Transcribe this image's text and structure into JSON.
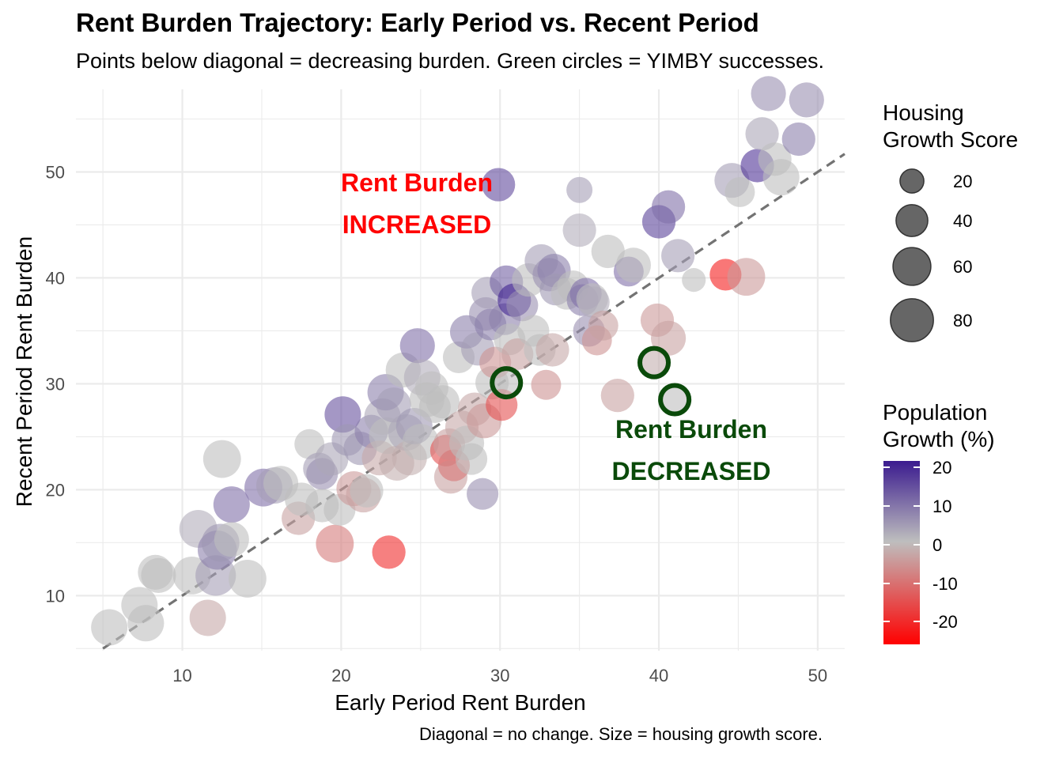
{
  "title": "Rent Burden Trajectory: Early Period vs. Recent Period",
  "subtitle": "Points below diagonal = decreasing burden. Green circles = YIMBY successes.",
  "caption": "Diagonal = no change. Size = housing growth score.",
  "annotations": {
    "increased_line1": "Rent Burden",
    "increased_line2": "INCREASED",
    "decreased_line1": "Rent Burden",
    "decreased_line2": "DECREASED",
    "increased_color": "#ff0000",
    "decreased_color": "#0a4a0a"
  },
  "legend_size": {
    "title_line1": "Housing",
    "title_line2": "Growth Score",
    "entries": [
      "20",
      "40",
      "60",
      "80"
    ]
  },
  "legend_color": {
    "title_line1": "Population",
    "title_line2": "Growth (%)",
    "ticks": [
      "20",
      "10",
      "0",
      "-10",
      "-20"
    ],
    "high": "#3b1b8f",
    "mid": "#bebebe",
    "low": "#ff0000"
  },
  "chart_data": {
    "type": "scatter",
    "xlabel": "Early Period Rent Burden",
    "ylabel": "Recent Period Rent Burden",
    "xlim": [
      3.3,
      51.7
    ],
    "ylim": [
      4.8,
      57.8
    ],
    "xticks": [
      "10",
      "20",
      "30",
      "40",
      "50"
    ],
    "yticks": [
      "10",
      "20",
      "30",
      "40",
      "50"
    ],
    "grid": true,
    "legend_position": "right",
    "reference_line": "y = x (dashed)",
    "points": [
      {
        "x": 5.4,
        "y": 7.0,
        "s": 55,
        "c": 0
      },
      {
        "x": 7.3,
        "y": 9.1,
        "s": 55,
        "c": 0
      },
      {
        "x": 7.7,
        "y": 7.4,
        "s": 55,
        "c": 0
      },
      {
        "x": 8.3,
        "y": 12.2,
        "s": 50,
        "c": 0
      },
      {
        "x": 8.5,
        "y": 11.9,
        "s": 50,
        "c": 0
      },
      {
        "x": 10.6,
        "y": 11.9,
        "s": 60,
        "c": 0
      },
      {
        "x": 11.0,
        "y": 16.3,
        "s": 60,
        "c": 2
      },
      {
        "x": 11.6,
        "y": 7.9,
        "s": 55,
        "c": -3
      },
      {
        "x": 12.1,
        "y": 11.9,
        "s": 70,
        "c": 4
      },
      {
        "x": 12.2,
        "y": 14.3,
        "s": 65,
        "c": 8
      },
      {
        "x": 12.4,
        "y": 15.0,
        "s": 60,
        "c": 5
      },
      {
        "x": 12.5,
        "y": 22.9,
        "s": 60,
        "c": 0
      },
      {
        "x": 13.1,
        "y": 18.6,
        "s": 55,
        "c": 10
      },
      {
        "x": 13.1,
        "y": 15.3,
        "s": 50,
        "c": 0
      },
      {
        "x": 14.1,
        "y": 11.6,
        "s": 60,
        "c": 0
      },
      {
        "x": 15.1,
        "y": 20.2,
        "s": 60,
        "c": 10
      },
      {
        "x": 15.8,
        "y": 20.4,
        "s": 55,
        "c": 4
      },
      {
        "x": 16.2,
        "y": 20.6,
        "s": 50,
        "c": 0
      },
      {
        "x": 17.3,
        "y": 17.3,
        "s": 45,
        "c": -4
      },
      {
        "x": 17.5,
        "y": 19.1,
        "s": 45,
        "c": 0
      },
      {
        "x": 18.0,
        "y": 24.3,
        "s": 35,
        "c": 0
      },
      {
        "x": 18.6,
        "y": 22.0,
        "s": 40,
        "c": 4
      },
      {
        "x": 18.8,
        "y": 21.5,
        "s": 40,
        "c": 6
      },
      {
        "x": 18.8,
        "y": 18.5,
        "s": 45,
        "c": 0
      },
      {
        "x": 19.4,
        "y": 22.9,
        "s": 45,
        "c": 3
      },
      {
        "x": 19.6,
        "y": 14.9,
        "s": 60,
        "c": -9
      },
      {
        "x": 19.9,
        "y": 18.1,
        "s": 40,
        "c": 0
      },
      {
        "x": 20.1,
        "y": 27.1,
        "s": 55,
        "c": 14
      },
      {
        "x": 20.4,
        "y": 24.7,
        "s": 40,
        "c": 5
      },
      {
        "x": 20.8,
        "y": 20.1,
        "s": 50,
        "c": -5
      },
      {
        "x": 21.2,
        "y": 23.9,
        "s": 45,
        "c": 5
      },
      {
        "x": 21.4,
        "y": 19.5,
        "s": 50,
        "c": -4
      },
      {
        "x": 21.6,
        "y": 19.9,
        "s": 45,
        "c": 0
      },
      {
        "x": 21.9,
        "y": 25.5,
        "s": 45,
        "c": 8
      },
      {
        "x": 22.4,
        "y": 23.0,
        "s": 50,
        "c": -3
      },
      {
        "x": 22.6,
        "y": 26.9,
        "s": 55,
        "c": 3
      },
      {
        "x": 22.8,
        "y": 29.2,
        "s": 55,
        "c": 8
      },
      {
        "x": 22.9,
        "y": 25.1,
        "s": 55,
        "c": 0
      },
      {
        "x": 23.0,
        "y": 14.1,
        "s": 45,
        "c": -20
      },
      {
        "x": 23.3,
        "y": 28.0,
        "s": 50,
        "c": 4
      },
      {
        "x": 23.5,
        "y": 22.5,
        "s": 50,
        "c": -2
      },
      {
        "x": 23.9,
        "y": 31.3,
        "s": 50,
        "c": 0
      },
      {
        "x": 24.1,
        "y": 25.4,
        "s": 55,
        "c": 3
      },
      {
        "x": 24.3,
        "y": 23.0,
        "s": 50,
        "c": -2
      },
      {
        "x": 24.6,
        "y": 26.0,
        "s": 55,
        "c": 5
      },
      {
        "x": 24.8,
        "y": 33.6,
        "s": 50,
        "c": 10
      },
      {
        "x": 25.0,
        "y": 24.5,
        "s": 55,
        "c": 0
      },
      {
        "x": 25.1,
        "y": 30.6,
        "s": 55,
        "c": 2
      },
      {
        "x": 25.4,
        "y": 28.5,
        "s": 50,
        "c": 0
      },
      {
        "x": 25.7,
        "y": 29.6,
        "s": 45,
        "c": 0
      },
      {
        "x": 25.9,
        "y": 27.8,
        "s": 40,
        "c": 0
      },
      {
        "x": 26.4,
        "y": 28.3,
        "s": 45,
        "c": 0
      },
      {
        "x": 26.6,
        "y": 23.7,
        "s": 40,
        "c": -15
      },
      {
        "x": 26.8,
        "y": 24.3,
        "s": 40,
        "c": -4
      },
      {
        "x": 26.9,
        "y": 21.2,
        "s": 45,
        "c": -4
      },
      {
        "x": 27.1,
        "y": 22.3,
        "s": 40,
        "c": -10
      },
      {
        "x": 27.4,
        "y": 32.5,
        "s": 40,
        "c": 0
      },
      {
        "x": 27.6,
        "y": 25.9,
        "s": 45,
        "c": -3
      },
      {
        "x": 27.9,
        "y": 24.4,
        "s": 50,
        "c": 0
      },
      {
        "x": 27.9,
        "y": 34.9,
        "s": 45,
        "c": 8
      },
      {
        "x": 28.2,
        "y": 22.9,
        "s": 40,
        "c": 0
      },
      {
        "x": 28.4,
        "y": 27.6,
        "s": 45,
        "c": -3
      },
      {
        "x": 28.6,
        "y": 33.3,
        "s": 45,
        "c": 4
      },
      {
        "x": 28.9,
        "y": 19.6,
        "s": 40,
        "c": 6
      },
      {
        "x": 29.0,
        "y": 26.5,
        "s": 50,
        "c": -5
      },
      {
        "x": 29.1,
        "y": 36.6,
        "s": 45,
        "c": 6
      },
      {
        "x": 29.2,
        "y": 38.6,
        "s": 40,
        "c": 4
      },
      {
        "x": 29.4,
        "y": 35.6,
        "s": 40,
        "c": 8
      },
      {
        "x": 29.5,
        "y": 30.1,
        "s": 45,
        "c": 0
      },
      {
        "x": 29.7,
        "y": 32.0,
        "s": 40,
        "c": -6
      },
      {
        "x": 29.9,
        "y": 48.8,
        "s": 45,
        "c": 15
      },
      {
        "x": 30.1,
        "y": 28.0,
        "s": 40,
        "c": -15
      },
      {
        "x": 30.3,
        "y": 36.1,
        "s": 40,
        "c": 8
      },
      {
        "x": 30.4,
        "y": 39.6,
        "s": 45,
        "c": 12
      },
      {
        "x": 30.6,
        "y": 34.2,
        "s": 40,
        "c": 0
      },
      {
        "x": 30.9,
        "y": 37.9,
        "s": 45,
        "c": 20
      },
      {
        "x": 31.1,
        "y": 32.8,
        "s": 40,
        "c": -4
      },
      {
        "x": 31.4,
        "y": 37.4,
        "s": 40,
        "c": 6
      },
      {
        "x": 31.8,
        "y": 39.8,
        "s": 45,
        "c": 0
      },
      {
        "x": 32.1,
        "y": 35.0,
        "s": 40,
        "c": 0
      },
      {
        "x": 32.5,
        "y": 33.2,
        "s": 40,
        "c": 0
      },
      {
        "x": 32.6,
        "y": 41.6,
        "s": 45,
        "c": 4
      },
      {
        "x": 32.9,
        "y": 29.9,
        "s": 35,
        "c": -6
      },
      {
        "x": 33.1,
        "y": 40.3,
        "s": 45,
        "c": 6
      },
      {
        "x": 33.3,
        "y": 33.2,
        "s": 45,
        "c": -3
      },
      {
        "x": 33.4,
        "y": 40.7,
        "s": 45,
        "c": 8
      },
      {
        "x": 33.5,
        "y": 38.9,
        "s": 40,
        "c": 5
      },
      {
        "x": 34.2,
        "y": 38.5,
        "s": 40,
        "c": 0
      },
      {
        "x": 34.6,
        "y": 39.2,
        "s": 40,
        "c": 0
      },
      {
        "x": 35.0,
        "y": 48.3,
        "s": 25,
        "c": 4
      },
      {
        "x": 35.0,
        "y": 44.5,
        "s": 45,
        "c": 2
      },
      {
        "x": 35.2,
        "y": 37.9,
        "s": 40,
        "c": 8
      },
      {
        "x": 35.4,
        "y": 38.5,
        "s": 40,
        "c": 10
      },
      {
        "x": 35.6,
        "y": 35.0,
        "s": 40,
        "c": 6
      },
      {
        "x": 35.8,
        "y": 38.0,
        "s": 40,
        "c": 0
      },
      {
        "x": 35.9,
        "y": 37.7,
        "s": 40,
        "c": 2
      },
      {
        "x": 36.1,
        "y": 34.1,
        "s": 35,
        "c": -6
      },
      {
        "x": 36.5,
        "y": 35.5,
        "s": 35,
        "c": -4
      },
      {
        "x": 36.8,
        "y": 42.5,
        "s": 45,
        "c": 0
      },
      {
        "x": 37.4,
        "y": 28.9,
        "s": 45,
        "c": -4
      },
      {
        "x": 38.1,
        "y": 40.6,
        "s": 35,
        "c": 10
      },
      {
        "x": 38.4,
        "y": 41.2,
        "s": 50,
        "c": 0
      },
      {
        "x": 39.9,
        "y": 36.0,
        "s": 45,
        "c": -5
      },
      {
        "x": 40.0,
        "y": 45.3,
        "s": 45,
        "c": 16
      },
      {
        "x": 40.6,
        "y": 34.3,
        "s": 50,
        "c": -4
      },
      {
        "x": 40.6,
        "y": 46.7,
        "s": 45,
        "c": 10
      },
      {
        "x": 41.2,
        "y": 42.1,
        "s": 45,
        "c": 4
      },
      {
        "x": 42.2,
        "y": 39.8,
        "s": 20,
        "c": 0
      },
      {
        "x": 44.2,
        "y": 40.3,
        "s": 40,
        "c": -22
      },
      {
        "x": 44.6,
        "y": 49.2,
        "s": 50,
        "c": 4
      },
      {
        "x": 45.1,
        "y": 48.1,
        "s": 35,
        "c": 0
      },
      {
        "x": 45.5,
        "y": 40.1,
        "s": 60,
        "c": -5
      },
      {
        "x": 46.2,
        "y": 50.6,
        "s": 45,
        "c": 18
      },
      {
        "x": 46.5,
        "y": 53.6,
        "s": 45,
        "c": 3
      },
      {
        "x": 46.9,
        "y": 57.4,
        "s": 50,
        "c": 6
      },
      {
        "x": 47.3,
        "y": 51.2,
        "s": 45,
        "c": 0
      },
      {
        "x": 47.7,
        "y": 49.5,
        "s": 55,
        "c": 0
      },
      {
        "x": 48.8,
        "y": 53.1,
        "s": 45,
        "c": 8
      },
      {
        "x": 49.3,
        "y": 56.8,
        "s": 50,
        "c": 6
      }
    ],
    "highlighted": [
      {
        "x": 30.4,
        "y": 30.1,
        "s": 45,
        "c": 0
      },
      {
        "x": 39.7,
        "y": 32.0,
        "s": 45,
        "c": -2
      },
      {
        "x": 41.0,
        "y": 28.5,
        "s": 45,
        "c": 0
      }
    ]
  }
}
